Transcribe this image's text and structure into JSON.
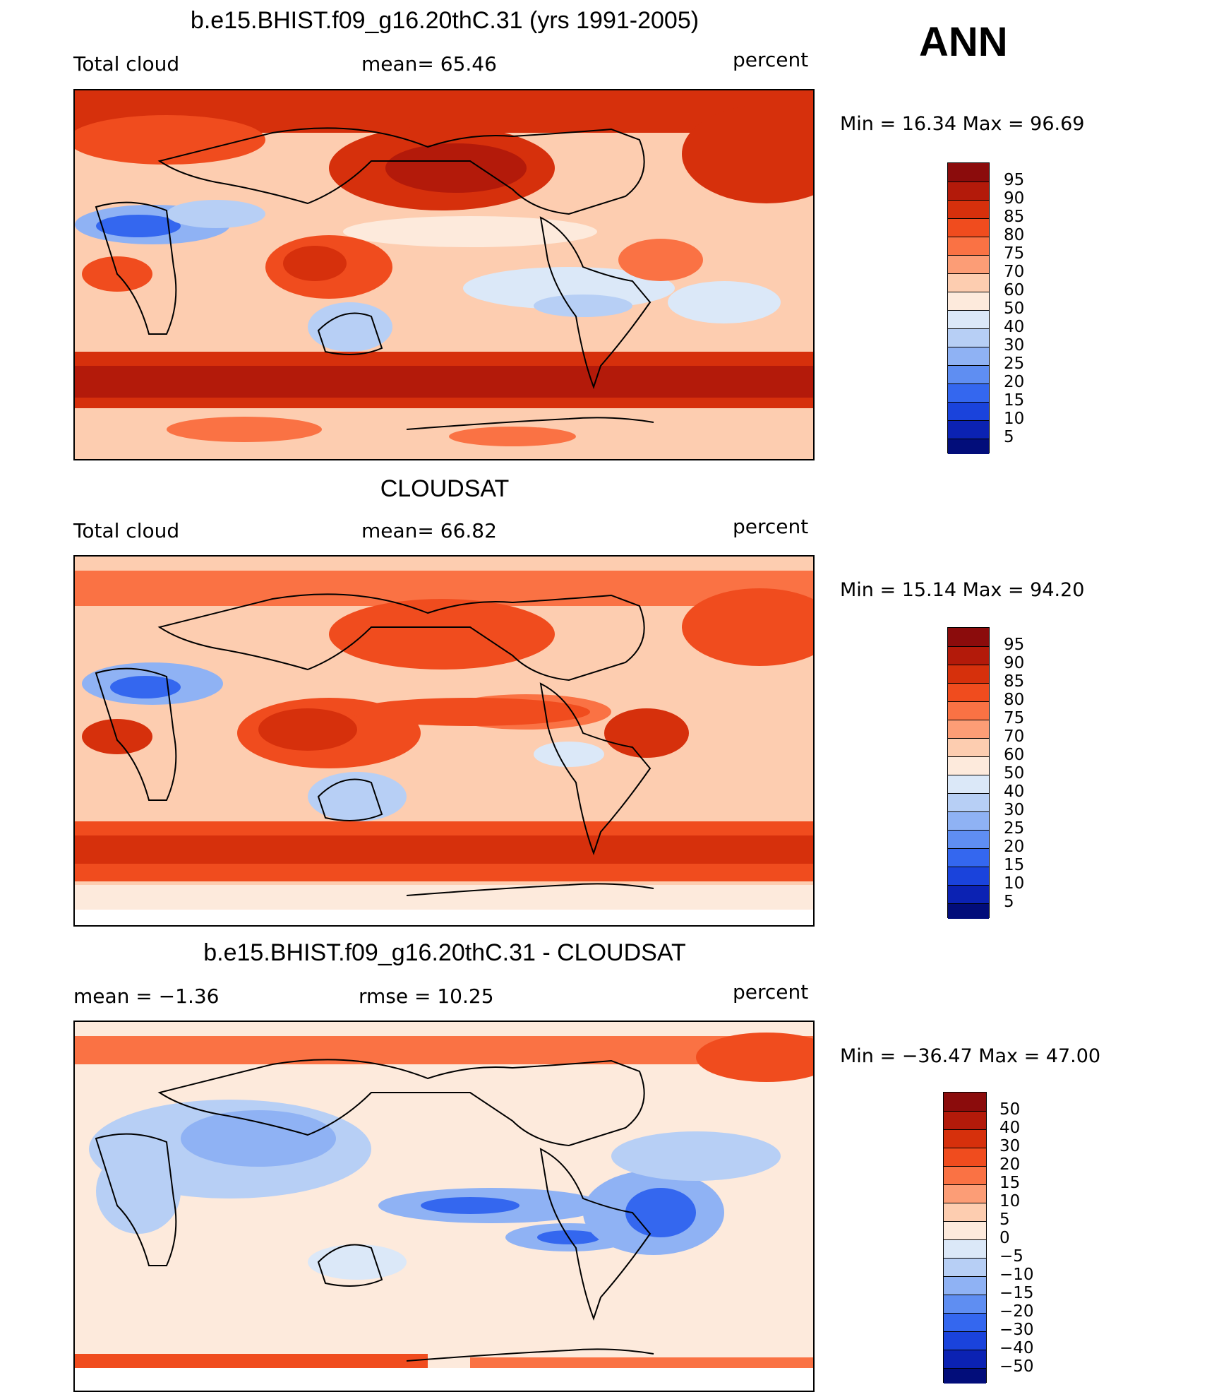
{
  "figure": {
    "season": "ANN"
  },
  "panels": [
    {
      "title": "b.e15.BHIST.f09_g16.20thC.31 (yrs 1991-2005)",
      "left_label": "Total cloud",
      "center_label": "mean=   65.46",
      "right_label": "percent",
      "stats": "Min  =    16.34  Max  =    96.69",
      "colorbar": {
        "labels": [
          "95",
          "90",
          "85",
          "80",
          "75",
          "70",
          "60",
          "50",
          "40",
          "30",
          "25",
          "20",
          "15",
          "10",
          "5"
        ],
        "colors": [
          "#8b0c0c",
          "#b31a0a",
          "#d6300c",
          "#f04c1e",
          "#fa7244",
          "#fc9d76",
          "#fdcdb0",
          "#fdeadc",
          "#dbe8f8",
          "#b7cff5",
          "#8fb2f4",
          "#5f8ef2",
          "#3467ef",
          "#1a43dc",
          "#0b22b3",
          "#020d7a"
        ]
      }
    },
    {
      "title": "CLOUDSAT",
      "left_label": "Total cloud",
      "center_label": "mean=   66.82",
      "right_label": "percent",
      "stats": "Min  =    15.14  Max  =    94.20",
      "colorbar": {
        "labels": [
          "95",
          "90",
          "85",
          "80",
          "75",
          "70",
          "60",
          "50",
          "40",
          "30",
          "25",
          "20",
          "15",
          "10",
          "5"
        ],
        "colors": [
          "#8b0c0c",
          "#b31a0a",
          "#d6300c",
          "#f04c1e",
          "#fa7244",
          "#fc9d76",
          "#fdcdb0",
          "#fdeadc",
          "#dbe8f8",
          "#b7cff5",
          "#8fb2f4",
          "#5f8ef2",
          "#3467ef",
          "#1a43dc",
          "#0b22b3",
          "#020d7a"
        ]
      }
    },
    {
      "title": "b.e15.BHIST.f09_g16.20thC.31 - CLOUDSAT",
      "left_label": "mean  =    −1.36",
      "center_label": "rmse  =    10.25",
      "right_label": "percent",
      "stats": "Min  = −36.47  Max  =    47.00",
      "colorbar": {
        "labels": [
          "50",
          "40",
          "30",
          "20",
          "15",
          "10",
          "5",
          "0",
          "−5",
          "−10",
          "−15",
          "−20",
          "−30",
          "−40",
          "−50"
        ],
        "colors": [
          "#8b0c0c",
          "#b31a0a",
          "#d6300c",
          "#f04c1e",
          "#fa7244",
          "#fc9d76",
          "#fdcdb0",
          "#fdeadc",
          "#dbe8f8",
          "#b7cff5",
          "#8fb2f4",
          "#5f8ef2",
          "#3467ef",
          "#1a43dc",
          "#0b22b3",
          "#020d7a"
        ]
      }
    }
  ]
}
